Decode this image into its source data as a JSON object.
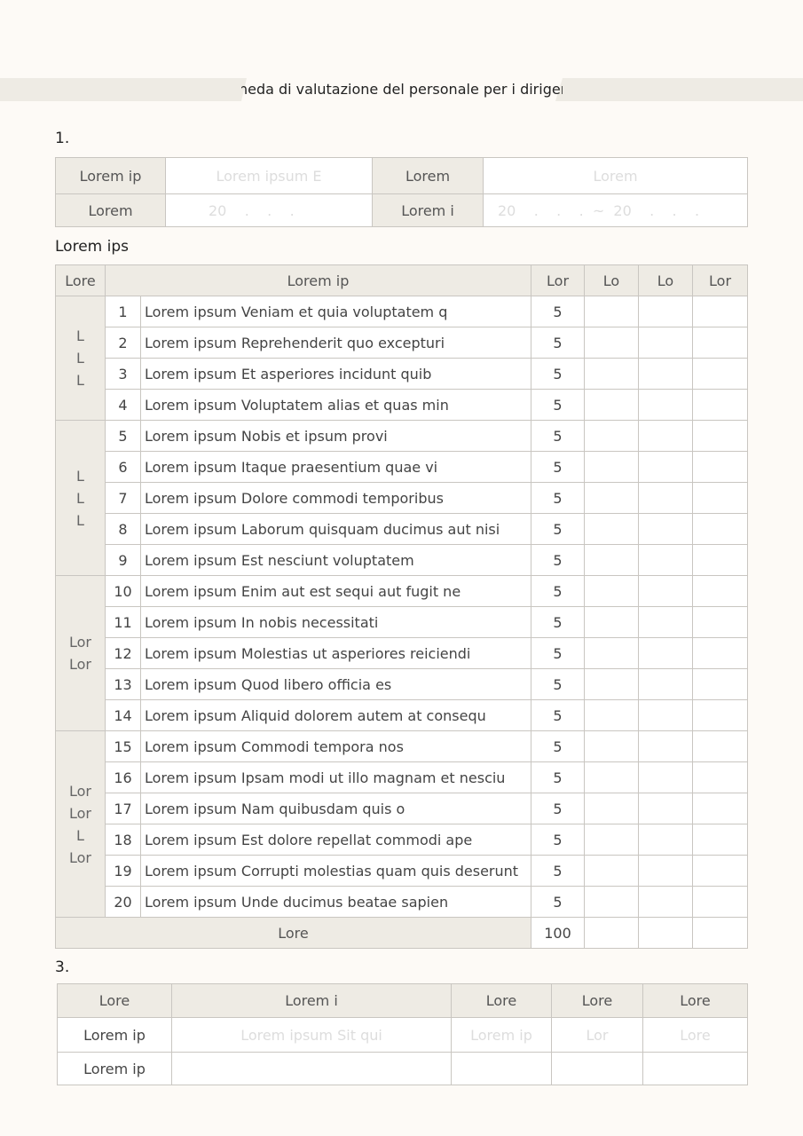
{
  "title": "Scheda di valutazione del personale per i dirigenti",
  "section1": {
    "heading": "1.",
    "r1": [
      "Lorem ip",
      "Lorem ipsum E",
      "Lorem",
      "Lorem"
    ],
    "r2": [
      "Lorem",
      "20    .    .    .",
      "Lorem i",
      "20    .    .    .  ~  20    .    .    ."
    ]
  },
  "section2": {
    "heading": "Lorem ips",
    "headers": [
      "Lore",
      "Lorem ip",
      "Lor",
      "Lo",
      "Lo",
      "Lor"
    ],
    "groups": [
      {
        "label": "L\nL\nL",
        "span": 4
      },
      {
        "label": "L\nL\nL",
        "span": 5
      },
      {
        "label": "Lor\nLor",
        "span": 5
      },
      {
        "label": "Lor\nLor\nL\nLor",
        "span": 6
      }
    ],
    "rows": [
      {
        "n": "1",
        "text": "Lorem ipsum Veniam et quia voluptatem q",
        "score": "5"
      },
      {
        "n": "2",
        "text": "Lorem ipsum Reprehenderit quo excepturi",
        "score": "5"
      },
      {
        "n": "3",
        "text": "Lorem ipsum Et asperiores incidunt quib",
        "score": "5"
      },
      {
        "n": "4",
        "text": "Lorem ipsum Voluptatem alias et quas min",
        "score": "5"
      },
      {
        "n": "5",
        "text": "Lorem ipsum Nobis et ipsum provi",
        "score": "5"
      },
      {
        "n": "6",
        "text": "Lorem ipsum Itaque praesentium quae vi",
        "score": "5"
      },
      {
        "n": "7",
        "text": "Lorem ipsum Dolore commodi temporibus",
        "score": "5"
      },
      {
        "n": "8",
        "text": "Lorem ipsum Laborum quisquam ducimus aut nisi",
        "score": "5"
      },
      {
        "n": "9",
        "text": "Lorem ipsum Est nesciunt voluptatem",
        "score": "5"
      },
      {
        "n": "10",
        "text": "Lorem ipsum Enim aut est sequi aut fugit ne",
        "score": "5"
      },
      {
        "n": "11",
        "text": "Lorem ipsum In nobis necessitati",
        "score": "5"
      },
      {
        "n": "12",
        "text": "Lorem ipsum Molestias ut asperiores reiciendi",
        "score": "5"
      },
      {
        "n": "13",
        "text": "Lorem ipsum Quod libero officia es",
        "score": "5"
      },
      {
        "n": "14",
        "text": "Lorem ipsum Aliquid dolorem autem at consequ",
        "score": "5"
      },
      {
        "n": "15",
        "text": "Lorem ipsum Commodi tempora nos",
        "score": "5"
      },
      {
        "n": "16",
        "text": "Lorem ipsum Ipsam modi ut illo magnam et nesciu",
        "score": "5"
      },
      {
        "n": "17",
        "text": "Lorem ipsum Nam quibusdam quis o",
        "score": "5"
      },
      {
        "n": "18",
        "text": "Lorem ipsum Est dolore repellat commodi ape",
        "score": "5"
      },
      {
        "n": "19",
        "text": "Lorem ipsum Corrupti molestias quam quis deserunt",
        "score": "5"
      },
      {
        "n": "20",
        "text": "Lorem ipsum Unde ducimus beatae sapien",
        "score": "5"
      }
    ],
    "total_label": "Lore",
    "total_value": "100"
  },
  "section3": {
    "heading": "3.",
    "headers": [
      "Lore",
      "Lorem i",
      "Lore",
      "Lore",
      "Lore"
    ],
    "r1": [
      "Lorem ip",
      "Lorem ipsum Sit qui",
      "Lorem ip",
      "Lor",
      "Lore"
    ],
    "r2": [
      "Lorem ip",
      "",
      "",
      "",
      ""
    ]
  }
}
